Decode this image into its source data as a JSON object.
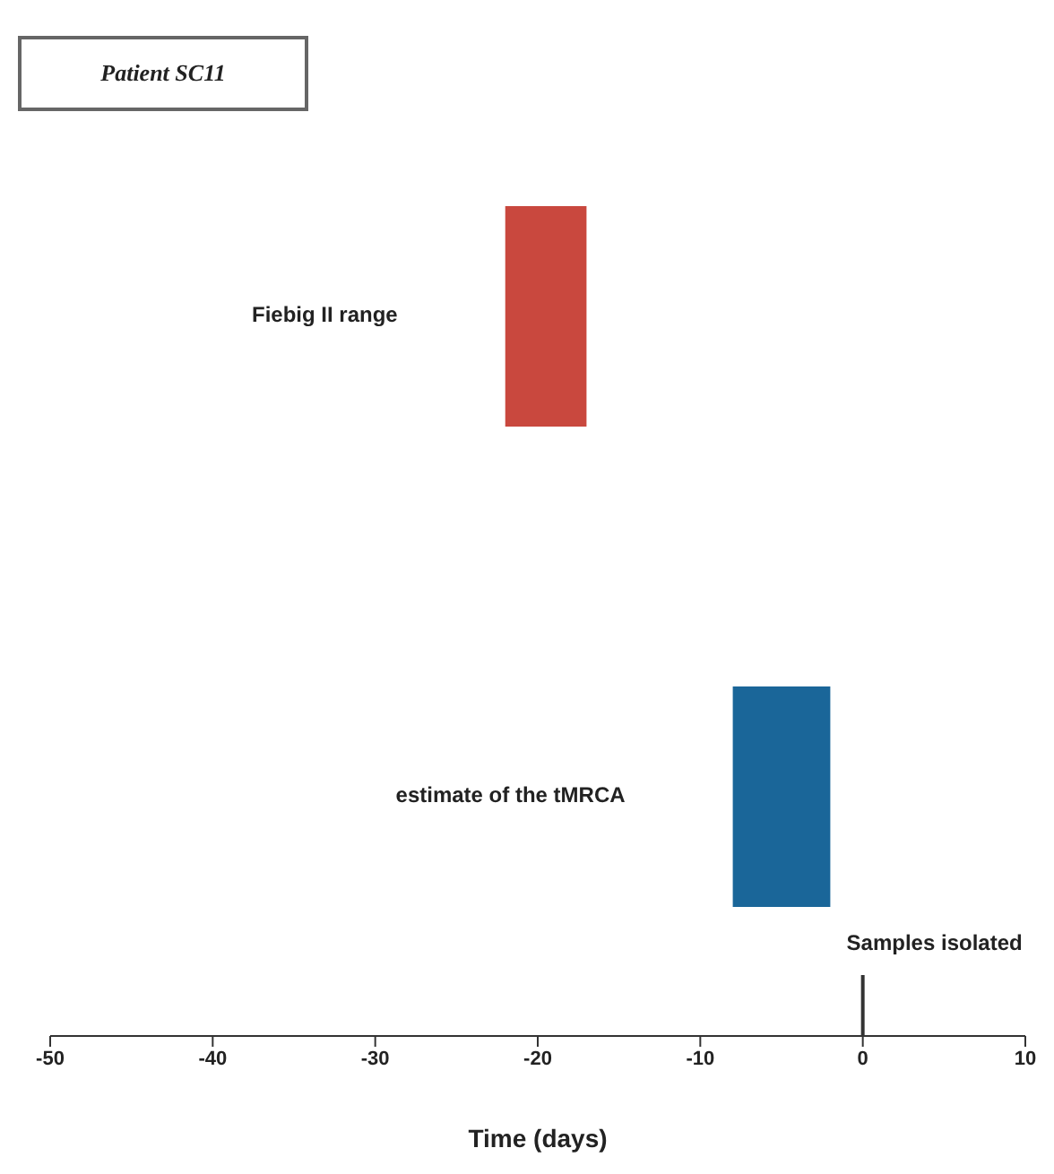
{
  "chart_data": {
    "type": "bar",
    "orientation": "horizontal",
    "title": "Patient SC11",
    "xlabel": "Time (days)",
    "categories": [
      "Fiebig II range",
      "estimate of the tMRCA"
    ],
    "base": [
      -22,
      -8
    ],
    "values": [
      5,
      6
    ],
    "colors": [
      "#c9483e",
      "#1a6699"
    ],
    "xlim": [
      -50,
      10
    ],
    "xticks": [
      -50,
      -40,
      -30,
      -20,
      -10,
      0,
      10
    ],
    "ref_lines": [
      {
        "axis": "x",
        "value": 0,
        "label": "Samples isolated",
        "color": "#333333"
      }
    ],
    "grid": false,
    "legend": false
  }
}
